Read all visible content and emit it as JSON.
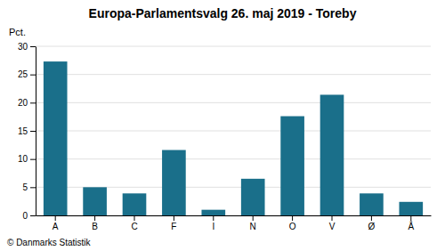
{
  "chart_data": {
    "type": "bar",
    "title": "Europa-Parlamentsvalg 26. maj 2019 - Toreby",
    "categories": [
      "A",
      "B",
      "C",
      "F",
      "I",
      "N",
      "O",
      "V",
      "Ø",
      "Å"
    ],
    "values": [
      27.3,
      5.0,
      3.9,
      11.6,
      1.0,
      6.5,
      17.6,
      21.4,
      3.9,
      2.4
    ],
    "color": "#1a6f8a",
    "ylabel": "Pct.",
    "ylim": [
      0,
      30
    ],
    "yticks": [
      0,
      5,
      10,
      15,
      20,
      25,
      30
    ],
    "grid": true,
    "footer": "© Danmarks Statistik"
  }
}
